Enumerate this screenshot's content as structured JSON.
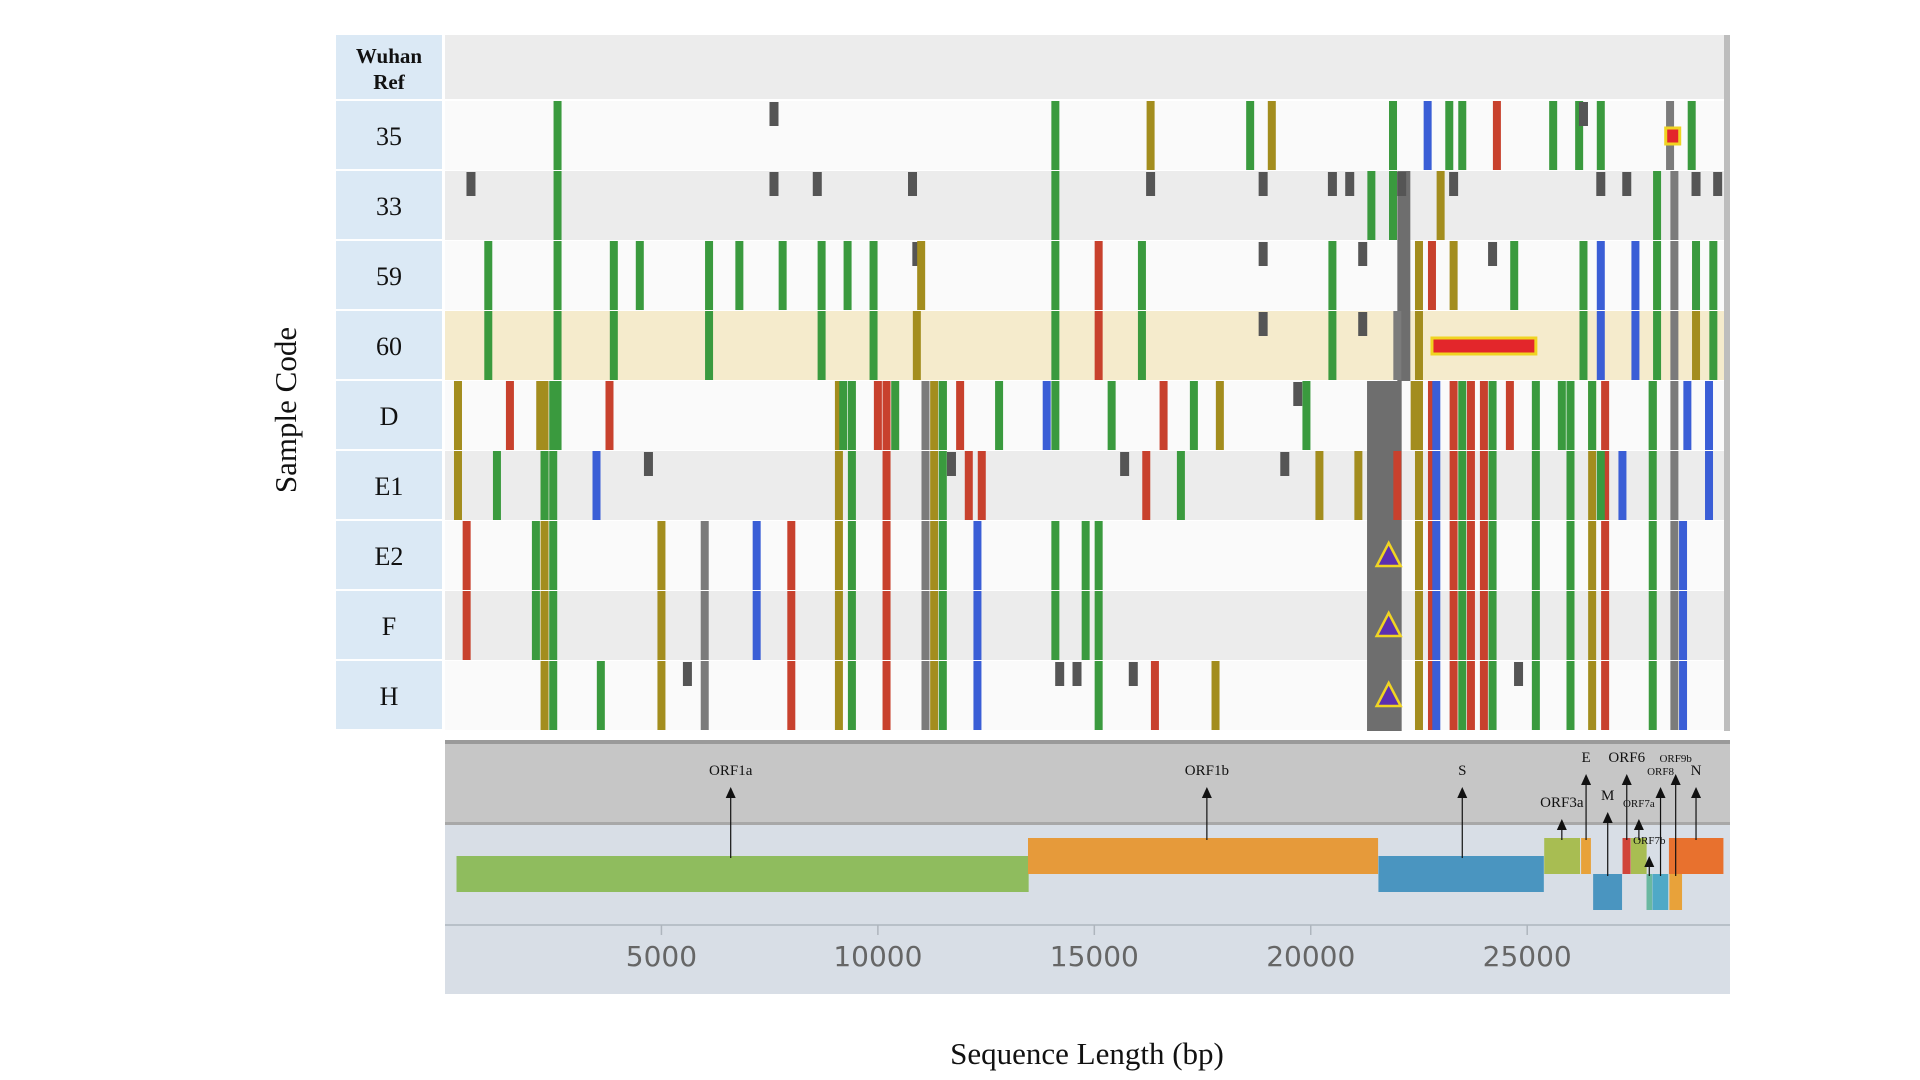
{
  "chart_data": {
    "type": "variant-map",
    "ylabel": "Sample Code",
    "xlabel": "Sequence Length (bp)",
    "xlim": [
      0,
      29500
    ],
    "xticks": [
      5000,
      10000,
      15000,
      20000,
      25000
    ],
    "reference_label_lines": [
      "Wuhan",
      "Ref"
    ],
    "rows": [
      "35",
      "33",
      "59",
      "60",
      "D",
      "E1",
      "E2",
      "F",
      "H"
    ],
    "highlight_row": "60",
    "colors": {
      "green": "#3a9a3e",
      "olive": "#a38d1e",
      "red": "#c8412d",
      "blue": "#3a5ed6",
      "darkgray": "#555555",
      "gray": "#7b7b7b",
      "del_fill": "#e3262b",
      "del_border": "#f0d422",
      "triangle": "#5b2fb0",
      "row_label_bg": "#dbe9f5",
      "highlight_bg": "#f5ebcc"
    },
    "variants": {
      "35": [
        {
          "pos": 2600,
          "c": "green"
        },
        {
          "pos": 7600,
          "c": "darkgray"
        },
        {
          "pos": 14100,
          "c": "green"
        },
        {
          "pos": 16300,
          "c": "olive"
        },
        {
          "pos": 18600,
          "c": "green"
        },
        {
          "pos": 19100,
          "c": "olive"
        },
        {
          "pos": 21900,
          "c": "green"
        },
        {
          "pos": 22700,
          "c": "blue"
        },
        {
          "pos": 23200,
          "c": "green"
        },
        {
          "pos": 23500,
          "c": "green"
        },
        {
          "pos": 24300,
          "c": "red"
        },
        {
          "pos": 25600,
          "c": "green"
        },
        {
          "pos": 26200,
          "c": "green"
        },
        {
          "pos": 26300,
          "c": "darkgray"
        },
        {
          "pos": 26700,
          "c": "green"
        },
        {
          "pos": 28300,
          "c": "gray"
        },
        {
          "pos": 28800,
          "c": "green"
        }
      ],
      "33": [
        {
          "pos": 600,
          "c": "darkgray"
        },
        {
          "pos": 2600,
          "c": "green"
        },
        {
          "pos": 7600,
          "c": "darkgray"
        },
        {
          "pos": 8600,
          "c": "darkgray"
        },
        {
          "pos": 10800,
          "c": "darkgray"
        },
        {
          "pos": 14100,
          "c": "green"
        },
        {
          "pos": 16300,
          "c": "darkgray"
        },
        {
          "pos": 18900,
          "c": "darkgray"
        },
        {
          "pos": 20500,
          "c": "darkgray"
        },
        {
          "pos": 20900,
          "c": "darkgray"
        },
        {
          "pos": 21400,
          "c": "green"
        },
        {
          "pos": 21900,
          "c": "green"
        },
        {
          "pos": 22100,
          "c": "darkgray"
        },
        {
          "pos": 23000,
          "c": "olive"
        },
        {
          "pos": 23300,
          "c": "darkgray"
        },
        {
          "pos": 26700,
          "c": "darkgray"
        },
        {
          "pos": 27300,
          "c": "darkgray"
        },
        {
          "pos": 28000,
          "c": "green"
        },
        {
          "pos": 28400,
          "c": "gray"
        },
        {
          "pos": 28900,
          "c": "darkgray"
        },
        {
          "pos": 29400,
          "c": "darkgray"
        }
      ],
      "59": [
        {
          "pos": 1000,
          "c": "green"
        },
        {
          "pos": 2600,
          "c": "green"
        },
        {
          "pos": 3900,
          "c": "green"
        },
        {
          "pos": 4500,
          "c": "green"
        },
        {
          "pos": 6100,
          "c": "green"
        },
        {
          "pos": 6800,
          "c": "green"
        },
        {
          "pos": 7800,
          "c": "green"
        },
        {
          "pos": 8700,
          "c": "green"
        },
        {
          "pos": 9300,
          "c": "green"
        },
        {
          "pos": 9900,
          "c": "green"
        },
        {
          "pos": 10900,
          "c": "darkgray"
        },
        {
          "pos": 11000,
          "c": "olive"
        },
        {
          "pos": 14100,
          "c": "green"
        },
        {
          "pos": 15100,
          "c": "red"
        },
        {
          "pos": 16100,
          "c": "green"
        },
        {
          "pos": 18900,
          "c": "darkgray"
        },
        {
          "pos": 20500,
          "c": "green"
        },
        {
          "pos": 21200,
          "c": "darkgray"
        },
        {
          "pos": 22800,
          "c": "red"
        },
        {
          "pos": 23300,
          "c": "olive"
        },
        {
          "pos": 24200,
          "c": "darkgray"
        },
        {
          "pos": 24700,
          "c": "green"
        },
        {
          "pos": 26300,
          "c": "green"
        },
        {
          "pos": 26700,
          "c": "blue"
        },
        {
          "pos": 27500,
          "c": "blue"
        },
        {
          "pos": 28000,
          "c": "green"
        },
        {
          "pos": 28400,
          "c": "gray"
        },
        {
          "pos": 28900,
          "c": "green"
        },
        {
          "pos": 29300,
          "c": "green"
        }
      ],
      "60": [
        {
          "pos": 1000,
          "c": "green"
        },
        {
          "pos": 2600,
          "c": "green"
        },
        {
          "pos": 3900,
          "c": "green"
        },
        {
          "pos": 6100,
          "c": "green"
        },
        {
          "pos": 8700,
          "c": "green"
        },
        {
          "pos": 9900,
          "c": "green"
        },
        {
          "pos": 10900,
          "c": "olive"
        },
        {
          "pos": 14100,
          "c": "green"
        },
        {
          "pos": 15100,
          "c": "red"
        },
        {
          "pos": 16100,
          "c": "green"
        },
        {
          "pos": 18900,
          "c": "darkgray"
        },
        {
          "pos": 20500,
          "c": "green"
        },
        {
          "pos": 21200,
          "c": "darkgray"
        },
        {
          "pos": 22000,
          "c": "gray"
        },
        {
          "pos": 26300,
          "c": "green"
        },
        {
          "pos": 26700,
          "c": "blue"
        },
        {
          "pos": 27500,
          "c": "blue"
        },
        {
          "pos": 28000,
          "c": "green"
        },
        {
          "pos": 28400,
          "c": "gray"
        },
        {
          "pos": 28900,
          "c": "olive"
        },
        {
          "pos": 29300,
          "c": "green"
        }
      ],
      "D": [
        {
          "pos": 300,
          "c": "olive"
        },
        {
          "pos": 1500,
          "c": "red"
        },
        {
          "pos": 2200,
          "c": "olive"
        },
        {
          "pos": 2600,
          "c": "green"
        },
        {
          "pos": 3800,
          "c": "red"
        },
        {
          "pos": 9200,
          "c": "green"
        },
        {
          "pos": 10000,
          "c": "red"
        },
        {
          "pos": 10400,
          "c": "green"
        },
        {
          "pos": 11100,
          "c": "gray"
        },
        {
          "pos": 11500,
          "c": "green"
        },
        {
          "pos": 11900,
          "c": "red"
        },
        {
          "pos": 12800,
          "c": "green"
        },
        {
          "pos": 13900,
          "c": "blue"
        },
        {
          "pos": 14100,
          "c": "green"
        },
        {
          "pos": 15400,
          "c": "green"
        },
        {
          "pos": 16600,
          "c": "red"
        },
        {
          "pos": 17300,
          "c": "green"
        },
        {
          "pos": 17900,
          "c": "olive"
        },
        {
          "pos": 19700,
          "c": "darkgray"
        },
        {
          "pos": 19900,
          "c": "green"
        },
        {
          "pos": 22400,
          "c": "olive"
        },
        {
          "pos": 24600,
          "c": "red"
        },
        {
          "pos": 25800,
          "c": "green"
        },
        {
          "pos": 26500,
          "c": "green"
        },
        {
          "pos": 27900,
          "c": "green"
        },
        {
          "pos": 28700,
          "c": "blue"
        },
        {
          "pos": 29200,
          "c": "blue"
        }
      ],
      "E1": [
        {
          "pos": 300,
          "c": "olive"
        },
        {
          "pos": 1200,
          "c": "green"
        },
        {
          "pos": 2300,
          "c": "green"
        },
        {
          "pos": 3500,
          "c": "blue"
        },
        {
          "pos": 4700,
          "c": "darkgray"
        },
        {
          "pos": 11700,
          "c": "darkgray"
        },
        {
          "pos": 12100,
          "c": "red"
        },
        {
          "pos": 12400,
          "c": "red"
        },
        {
          "pos": 15700,
          "c": "darkgray"
        },
        {
          "pos": 16200,
          "c": "red"
        },
        {
          "pos": 17000,
          "c": "green"
        },
        {
          "pos": 19400,
          "c": "darkgray"
        },
        {
          "pos": 20200,
          "c": "olive"
        },
        {
          "pos": 21100,
          "c": "olive"
        },
        {
          "pos": 22000,
          "c": "red"
        },
        {
          "pos": 26700,
          "c": "green"
        },
        {
          "pos": 27200,
          "c": "blue"
        },
        {
          "pos": 29200,
          "c": "blue"
        }
      ],
      "E2": [
        {
          "pos": 500,
          "c": "red"
        },
        {
          "pos": 2100,
          "c": "green"
        },
        {
          "pos": 5000,
          "c": "olive"
        },
        {
          "pos": 6000,
          "c": "gray"
        },
        {
          "pos": 7200,
          "c": "blue"
        },
        {
          "pos": 8000,
          "c": "red"
        },
        {
          "pos": 12300,
          "c": "blue"
        },
        {
          "pos": 14100,
          "c": "green"
        },
        {
          "pos": 14800,
          "c": "green"
        },
        {
          "pos": 15100,
          "c": "green"
        },
        {
          "pos": 28600,
          "c": "blue"
        }
      ],
      "F": [
        {
          "pos": 500,
          "c": "red"
        },
        {
          "pos": 2100,
          "c": "green"
        },
        {
          "pos": 5000,
          "c": "olive"
        },
        {
          "pos": 6000,
          "c": "gray"
        },
        {
          "pos": 7200,
          "c": "blue"
        },
        {
          "pos": 8000,
          "c": "red"
        },
        {
          "pos": 12300,
          "c": "blue"
        },
        {
          "pos": 14100,
          "c": "green"
        },
        {
          "pos": 14800,
          "c": "green"
        },
        {
          "pos": 15100,
          "c": "green"
        },
        {
          "pos": 28600,
          "c": "blue"
        }
      ],
      "H": [
        {
          "pos": 3600,
          "c": "green"
        },
        {
          "pos": 5000,
          "c": "olive"
        },
        {
          "pos": 5600,
          "c": "darkgray"
        },
        {
          "pos": 6000,
          "c": "gray"
        },
        {
          "pos": 8000,
          "c": "red"
        },
        {
          "pos": 12300,
          "c": "blue"
        },
        {
          "pos": 14200,
          "c": "darkgray"
        },
        {
          "pos": 14600,
          "c": "darkgray"
        },
        {
          "pos": 15100,
          "c": "green"
        },
        {
          "pos": 15900,
          "c": "darkgray"
        },
        {
          "pos": 16400,
          "c": "red"
        },
        {
          "pos": 17800,
          "c": "olive"
        },
        {
          "pos": 24800,
          "c": "darkgray"
        },
        {
          "pos": 28600,
          "c": "blue"
        }
      ]
    },
    "block_variants": [
      {
        "rows": [
          "D",
          "E1",
          "E2",
          "F",
          "H"
        ],
        "pos": 2300,
        "c": "olive"
      },
      {
        "rows": [
          "D",
          "E1",
          "E2",
          "F",
          "H"
        ],
        "pos": 2500,
        "c": "green"
      },
      {
        "rows": [
          "D",
          "E1",
          "E2",
          "F",
          "H"
        ],
        "pos": 9100,
        "c": "olive"
      },
      {
        "rows": [
          "D",
          "E1",
          "E2",
          "F",
          "H"
        ],
        "pos": 9400,
        "c": "green"
      },
      {
        "rows": [
          "D",
          "E1",
          "E2",
          "F",
          "H"
        ],
        "pos": 10200,
        "c": "red"
      },
      {
        "rows": [
          "D",
          "E1",
          "E2",
          "F",
          "H"
        ],
        "pos": 11100,
        "c": "gray"
      },
      {
        "rows": [
          "D",
          "E1",
          "E2",
          "F",
          "H"
        ],
        "pos": 11300,
        "c": "olive"
      },
      {
        "rows": [
          "D",
          "E1",
          "E2",
          "F",
          "H"
        ],
        "pos": 11500,
        "c": "green"
      },
      {
        "rows": [
          "D",
          "E1",
          "E2",
          "F",
          "H"
        ],
        "pos": 22800,
        "c": "red"
      },
      {
        "rows": [
          "D",
          "E1",
          "E2",
          "F",
          "H"
        ],
        "pos": 22900,
        "c": "blue"
      },
      {
        "rows": [
          "D",
          "E1",
          "E2",
          "F",
          "H"
        ],
        "pos": 23300,
        "c": "red"
      },
      {
        "rows": [
          "D",
          "E1",
          "E2",
          "F",
          "H"
        ],
        "pos": 23500,
        "c": "green"
      },
      {
        "rows": [
          "D",
          "E1",
          "E2",
          "F",
          "H"
        ],
        "pos": 23700,
        "c": "red"
      },
      {
        "rows": [
          "D",
          "E1",
          "E2",
          "F",
          "H"
        ],
        "pos": 24000,
        "c": "red"
      },
      {
        "rows": [
          "D",
          "E1",
          "E2",
          "F",
          "H"
        ],
        "pos": 24200,
        "c": "green"
      },
      {
        "rows": [
          "D",
          "E1",
          "E2",
          "F",
          "H"
        ],
        "pos": 25200,
        "c": "green"
      },
      {
        "rows": [
          "D",
          "E1",
          "E2",
          "F",
          "H"
        ],
        "pos": 26000,
        "c": "green"
      },
      {
        "rows": [
          "D",
          "E1",
          "E2",
          "F",
          "H"
        ],
        "pos": 26500,
        "c": "olive"
      },
      {
        "rows": [
          "D",
          "E1",
          "E2",
          "F",
          "H"
        ],
        "pos": 26800,
        "c": "red"
      },
      {
        "rows": [
          "D",
          "E1",
          "E2",
          "F",
          "H"
        ],
        "pos": 27900,
        "c": "green"
      },
      {
        "rows": [
          "D",
          "E1",
          "E2",
          "F",
          "H"
        ],
        "pos": 28400,
        "c": "gray"
      },
      {
        "rows": [
          "59",
          "60",
          "D",
          "E1",
          "E2",
          "F",
          "H"
        ],
        "pos": 22500,
        "c": "olive"
      }
    ],
    "gray_blocks": [
      {
        "start": 21300,
        "end": 22100,
        "rows": [
          "D",
          "E1",
          "E2",
          "F",
          "H"
        ]
      },
      {
        "start": 22000,
        "end": 22300,
        "rows": [
          "33",
          "59",
          "60"
        ]
      }
    ],
    "deletions": [
      {
        "row": "35",
        "start": 28200,
        "end": 28450
      },
      {
        "row": "60",
        "start": 22800,
        "end": 25200
      }
    ],
    "insertions": [
      {
        "row": "E2",
        "pos": 21800
      },
      {
        "row": "F",
        "pos": 21800
      },
      {
        "row": "H",
        "pos": 21800
      }
    ],
    "genes": [
      {
        "name": "ORF1a",
        "start": 266,
        "end": 13483,
        "lane": 1,
        "color": "#8fbc5e",
        "label_pos": 6600,
        "label_level": 0,
        "small": false
      },
      {
        "name": "ORF1b",
        "start": 13468,
        "end": 21555,
        "lane": 0,
        "color": "#e69a3a",
        "label_pos": 17600,
        "label_level": 0,
        "small": false
      },
      {
        "name": "S",
        "start": 21563,
        "end": 25384,
        "lane": 1,
        "color": "#4a95c0",
        "label_pos": 23500,
        "label_level": 0,
        "small": false
      },
      {
        "name": "ORF3a",
        "start": 25393,
        "end": 26220,
        "lane": 0,
        "color": "#a8bd52",
        "label_pos": 25800,
        "label_level": 2,
        "small": false
      },
      {
        "name": "E",
        "start": 26245,
        "end": 26472,
        "lane": 0,
        "color": "#e8a23a",
        "label_pos": 26360,
        "label_level": -1,
        "small": false
      },
      {
        "name": "M",
        "start": 26523,
        "end": 27191,
        "lane": 2,
        "color": "#4a95c0",
        "label_pos": 26860,
        "label_level": 1,
        "small": false
      },
      {
        "name": "ORF6",
        "start": 27202,
        "end": 27387,
        "lane": 0,
        "color": "#d1453a",
        "label_pos": 27300,
        "label_level": -1,
        "small": false
      },
      {
        "name": "ORF7a",
        "start": 27394,
        "end": 27759,
        "lane": 0,
        "color": "#a8bd52",
        "label_pos": 27580,
        "label_level": 2,
        "small": true
      },
      {
        "name": "ORF7b",
        "start": 27756,
        "end": 27887,
        "lane": 2,
        "color": "#6ab8a0",
        "label_pos": 27820,
        "label_level": 3,
        "small": true
      },
      {
        "name": "ORF8",
        "start": 27894,
        "end": 28259,
        "lane": 2,
        "color": "#4fa9c7",
        "label_pos": 28080,
        "label_level": 0,
        "small": true
      },
      {
        "name": "N",
        "start": 28274,
        "end": 29533,
        "lane": 0,
        "color": "#e8712e",
        "label_pos": 28900,
        "label_level": 0,
        "small": false
      },
      {
        "name": "ORF9b",
        "start": 28284,
        "end": 28577,
        "lane": 2,
        "color": "#e8a23a",
        "label_pos": 28430,
        "label_level": -1,
        "small": true
      }
    ]
  }
}
